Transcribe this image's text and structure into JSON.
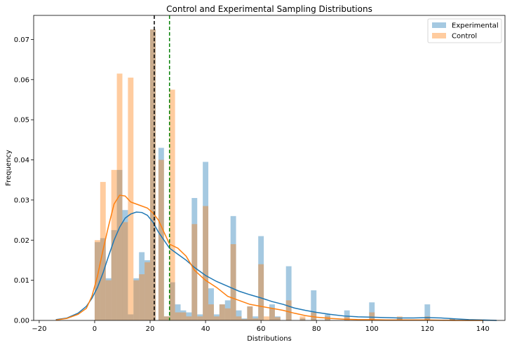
{
  "chart_data": {
    "type": "histogram",
    "title": "Control and Experimental Sampling Distributions",
    "xlabel": "Distributions",
    "ylabel": "Frequency",
    "xlim": [
      -22,
      148
    ],
    "ylim": [
      0,
      0.076
    ],
    "xticks": [
      -20,
      0,
      20,
      40,
      60,
      80,
      100,
      120,
      140
    ],
    "yticks": [
      0.0,
      0.01,
      0.02,
      0.03,
      0.04,
      0.05,
      0.06,
      0.07
    ],
    "grid": false,
    "legend_position": "top-right",
    "colors": {
      "experimental": "#1f77b4",
      "control": "#ff7f0e",
      "mean_experimental_line": "#008000",
      "mean_control_line": "#000000"
    },
    "vlines": [
      {
        "x": 21.5,
        "color": "#000000",
        "style": "dashed"
      },
      {
        "x": 27,
        "color": "#008000",
        "style": "dashed"
      }
    ],
    "series": [
      {
        "name": "Experimental",
        "color": "#1f77b4",
        "bins": [
          [
            1,
            0.0195
          ],
          [
            3,
            0.0205
          ],
          [
            5,
            0.0105
          ],
          [
            7,
            0.0225
          ],
          [
            9,
            0.0375
          ],
          [
            11,
            0.0275
          ],
          [
            13,
            0.0015
          ],
          [
            15,
            0.0105
          ],
          [
            17,
            0.017
          ],
          [
            19,
            0.015
          ],
          [
            21,
            0.0725
          ],
          [
            24,
            0.043
          ],
          [
            26,
            0.001
          ],
          [
            28,
            0.0095
          ],
          [
            30,
            0.004
          ],
          [
            32,
            0.0025
          ],
          [
            34,
            0.002
          ],
          [
            36,
            0.0305
          ],
          [
            38,
            0.0015
          ],
          [
            40,
            0.0395
          ],
          [
            42,
            0.008
          ],
          [
            44,
            0.0015
          ],
          [
            46,
            0.004
          ],
          [
            48,
            0.005
          ],
          [
            50,
            0.026
          ],
          [
            52,
            0.0025
          ],
          [
            54,
            0.0005
          ],
          [
            56,
            0.0035
          ],
          [
            58,
            0.001
          ],
          [
            60,
            0.021
          ],
          [
            64,
            0.004
          ],
          [
            66,
            0.001
          ],
          [
            70,
            0.0135
          ],
          [
            75,
            0.0005
          ],
          [
            79,
            0.0075
          ],
          [
            84,
            0.0015
          ],
          [
            91,
            0.0025
          ],
          [
            100,
            0.0045
          ],
          [
            110,
            0.0005
          ],
          [
            120,
            0.004
          ],
          [
            129,
            0.0005
          ]
        ],
        "kde": [
          [
            -14,
            0.0002
          ],
          [
            -10,
            0.0006
          ],
          [
            -6,
            0.0018
          ],
          [
            -3,
            0.0035
          ],
          [
            -1,
            0.0055
          ],
          [
            1,
            0.0082
          ],
          [
            3,
            0.0118
          ],
          [
            5,
            0.016
          ],
          [
            7,
            0.02
          ],
          [
            9,
            0.0232
          ],
          [
            11,
            0.0255
          ],
          [
            13,
            0.0265
          ],
          [
            15,
            0.027
          ],
          [
            17,
            0.0269
          ],
          [
            19,
            0.0262
          ],
          [
            21,
            0.0245
          ],
          [
            23,
            0.022
          ],
          [
            25,
            0.02
          ],
          [
            27,
            0.018
          ],
          [
            30,
            0.0165
          ],
          [
            33,
            0.015
          ],
          [
            36,
            0.0132
          ],
          [
            40,
            0.0112
          ],
          [
            44,
            0.0097
          ],
          [
            48,
            0.0085
          ],
          [
            52,
            0.0073
          ],
          [
            56,
            0.0064
          ],
          [
            60,
            0.0056
          ],
          [
            64,
            0.0047
          ],
          [
            68,
            0.004
          ],
          [
            72,
            0.0031
          ],
          [
            76,
            0.0025
          ],
          [
            80,
            0.002
          ],
          [
            85,
            0.0015
          ],
          [
            90,
            0.0011
          ],
          [
            95,
            0.0009
          ],
          [
            100,
            0.0008
          ],
          [
            105,
            0.0007
          ],
          [
            110,
            0.0006
          ],
          [
            115,
            0.0006
          ],
          [
            120,
            0.0007
          ],
          [
            125,
            0.0006
          ],
          [
            130,
            0.0004
          ],
          [
            135,
            0.0002
          ],
          [
            140,
            0.0001
          ],
          [
            145,
            0.0
          ]
        ]
      },
      {
        "name": "Control",
        "color": "#ff7f0e",
        "bins": [
          [
            1,
            0.02
          ],
          [
            3,
            0.0345
          ],
          [
            5,
            0.01
          ],
          [
            7,
            0.0375
          ],
          [
            9,
            0.0615
          ],
          [
            11,
            0.0245
          ],
          [
            13,
            0.0605
          ],
          [
            15,
            0.01
          ],
          [
            17,
            0.0115
          ],
          [
            19,
            0.0145
          ],
          [
            21,
            0.0725
          ],
          [
            24,
            0.04
          ],
          [
            26,
            0.001
          ],
          [
            28,
            0.0575
          ],
          [
            30,
            0.002
          ],
          [
            32,
            0.002
          ],
          [
            34,
            0.001
          ],
          [
            36,
            0.024
          ],
          [
            38,
            0.001
          ],
          [
            40,
            0.0285
          ],
          [
            42,
            0.004
          ],
          [
            44,
            0.001
          ],
          [
            46,
            0.004
          ],
          [
            48,
            0.003
          ],
          [
            50,
            0.019
          ],
          [
            52,
            0.001
          ],
          [
            54,
            0.0003
          ],
          [
            56,
            0.0035
          ],
          [
            58,
            0.0005
          ],
          [
            60,
            0.014
          ],
          [
            62,
            0.001
          ],
          [
            64,
            0.003
          ],
          [
            66,
            0.0008
          ],
          [
            70,
            0.005
          ],
          [
            75,
            0.001
          ],
          [
            79,
            0.002
          ],
          [
            84,
            0.001
          ],
          [
            91,
            0.0008
          ],
          [
            100,
            0.002
          ],
          [
            110,
            0.001
          ],
          [
            120,
            0.001
          ],
          [
            129,
            0.0005
          ]
        ],
        "kde": [
          [
            -14,
            0.0001
          ],
          [
            -10,
            0.0005
          ],
          [
            -6,
            0.0015
          ],
          [
            -3,
            0.003
          ],
          [
            -1,
            0.006
          ],
          [
            1,
            0.011
          ],
          [
            3,
            0.0175
          ],
          [
            5,
            0.0235
          ],
          [
            7,
            0.029
          ],
          [
            9,
            0.0312
          ],
          [
            11,
            0.031
          ],
          [
            13,
            0.0295
          ],
          [
            15,
            0.029
          ],
          [
            17,
            0.0285
          ],
          [
            19,
            0.028
          ],
          [
            21,
            0.0268
          ],
          [
            23,
            0.025
          ],
          [
            25,
            0.022
          ],
          [
            27,
            0.019
          ],
          [
            30,
            0.018
          ],
          [
            33,
            0.016
          ],
          [
            36,
            0.0125
          ],
          [
            40,
            0.01
          ],
          [
            44,
            0.0082
          ],
          [
            48,
            0.006
          ],
          [
            52,
            0.005
          ],
          [
            56,
            0.004
          ],
          [
            60,
            0.0035
          ],
          [
            64,
            0.003
          ],
          [
            68,
            0.0025
          ],
          [
            72,
            0.0018
          ],
          [
            76,
            0.0012
          ],
          [
            80,
            0.0008
          ],
          [
            85,
            0.0005
          ],
          [
            90,
            0.0003
          ],
          [
            95,
            0.0002
          ],
          [
            100,
            0.0002
          ],
          [
            105,
            0.0001
          ],
          [
            110,
            0.0001
          ],
          [
            120,
            0.0001
          ],
          [
            130,
            0.0
          ],
          [
            140,
            0.0
          ]
        ]
      }
    ]
  }
}
